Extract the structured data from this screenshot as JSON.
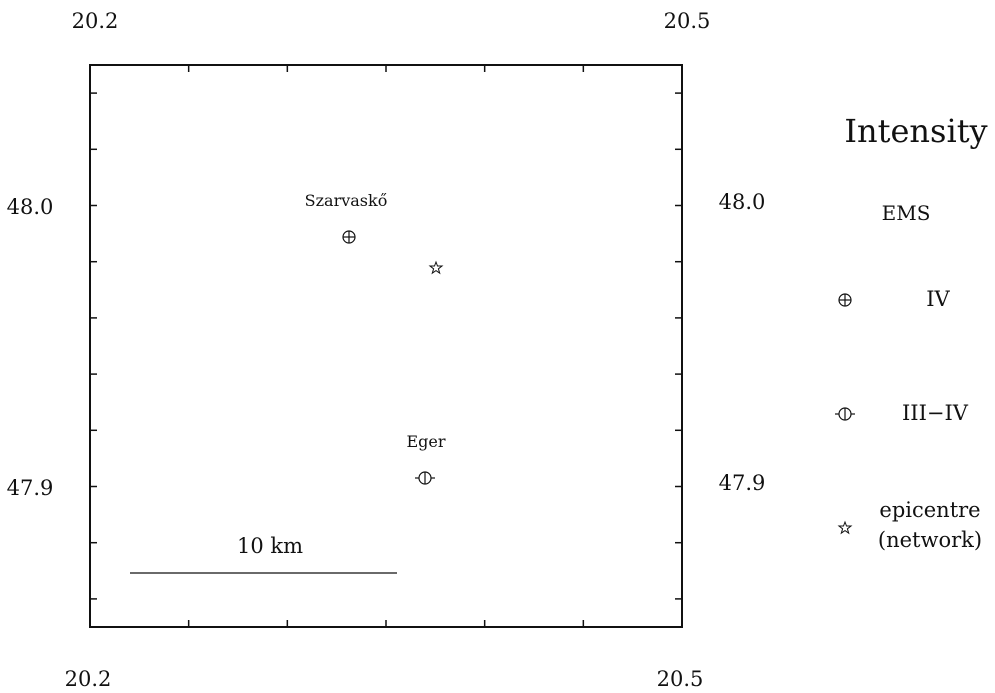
{
  "map": {
    "lon_labels": {
      "left": "20.2",
      "right": "20.5"
    },
    "lat_labels": {
      "upper": "48.0",
      "lower": "47.9"
    },
    "places": [
      {
        "name": "Szarvaskő",
        "symbol": "circle-plus-icon",
        "intensity": "IV"
      },
      {
        "name": "Eger",
        "symbol": "circle-bar-icon",
        "intensity": "III−IV"
      }
    ],
    "epicentre": {
      "symbol": "star-icon"
    },
    "scale_bar": {
      "label": "10  km"
    }
  },
  "legend": {
    "title": "Intensity",
    "subtitle": "EMS",
    "items": [
      {
        "symbol": "circle-plus-icon",
        "label": "IV"
      },
      {
        "symbol": "circle-bar-icon",
        "label": "III−IV"
      },
      {
        "symbol": "star-icon",
        "label_line1": "epicentre",
        "label_line2": "(network)"
      }
    ]
  }
}
